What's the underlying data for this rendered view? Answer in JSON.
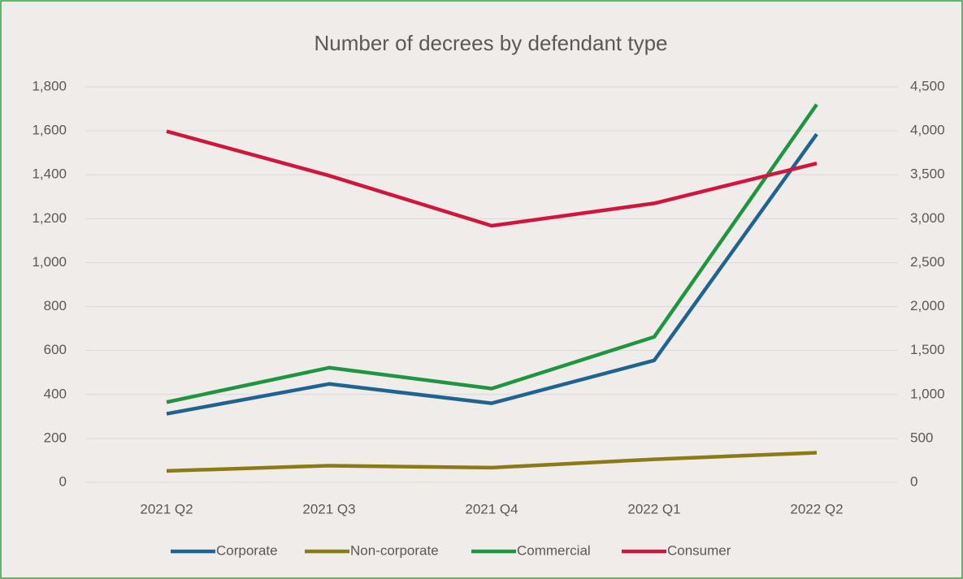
{
  "chart_data": {
    "type": "line",
    "title": "Number of decrees by defendant type",
    "categories": [
      "2021 Q2",
      "2021 Q3",
      "2021 Q4",
      "2022 Q1",
      "2022 Q2"
    ],
    "series": [
      {
        "name": "Corporate",
        "color": "#1f6391",
        "values": [
          312,
          448,
          360,
          555,
          1585
        ]
      },
      {
        "name": "Non-corporate",
        "color": "#8b7a16",
        "values": [
          52,
          76,
          67,
          105,
          135
        ]
      },
      {
        "name": "Commercial",
        "color": "#1e9641",
        "values": [
          365,
          522,
          427,
          662,
          1720
        ]
      },
      {
        "name": "Consumer",
        "color": "#d0153f",
        "values": [
          3995,
          3490,
          2920,
          3175,
          3630
        ],
        "axis": "y2"
      }
    ],
    "ylim": [
      0,
      1800
    ],
    "yticks": [
      0,
      {
        "value": 200,
        "label": "200"
      },
      400,
      600,
      800,
      {
        "value": 1000,
        "label": "1,000"
      },
      {
        "value": 1200,
        "label": "1,200"
      },
      {
        "value": 1400,
        "label": "1,400"
      },
      {
        "value": 1600,
        "label": "1,600"
      },
      {
        "value": 1800,
        "label": "1,800"
      }
    ],
    "y2lim": [
      0,
      4500
    ],
    "y2ticks": [
      0,
      500,
      {
        "value": 1000,
        "label": "1,000"
      },
      {
        "value": 1500,
        "label": "1,500"
      },
      {
        "value": 2000,
        "label": "2,000"
      },
      {
        "value": 2500,
        "label": "2,500"
      },
      {
        "value": 3000,
        "label": "3,000"
      },
      {
        "value": 3500,
        "label": "3,500"
      },
      {
        "value": 4000,
        "label": "4,000"
      },
      {
        "value": 4500,
        "label": "4,500"
      }
    ],
    "grid": true,
    "legend": "bottom"
  }
}
